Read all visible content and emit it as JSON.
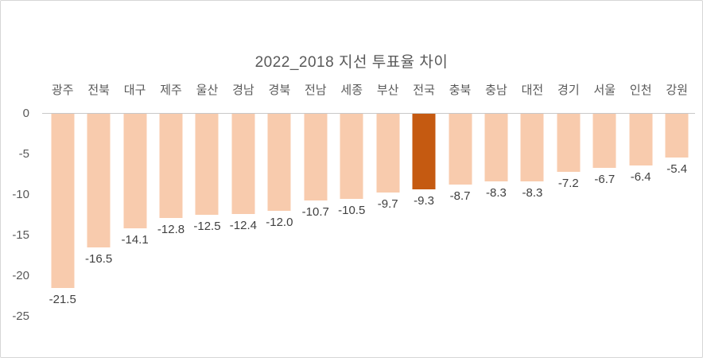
{
  "chart_data": {
    "type": "bar",
    "title": "2022_2018 지선 투표율 차이",
    "categories": [
      "광주",
      "전북",
      "대구",
      "제주",
      "울산",
      "경남",
      "경북",
      "전남",
      "세종",
      "부산",
      "전국",
      "충북",
      "충남",
      "대전",
      "경기",
      "서울",
      "인천",
      "강원"
    ],
    "values": [
      -21.5,
      -16.5,
      -14.1,
      -12.8,
      -12.5,
      -12.4,
      -12.0,
      -10.7,
      -10.5,
      -9.7,
      -9.3,
      -8.7,
      -8.3,
      -8.3,
      -7.2,
      -6.7,
      -6.4,
      -5.4
    ],
    "value_labels": [
      "-21.5",
      "-16.5",
      "-14.1",
      "-12.8",
      "-12.5",
      "-12.4",
      "-12.0",
      "-10.7",
      "-10.5",
      "-9.7",
      "-9.3",
      "-8.7",
      "-8.3",
      "-8.3",
      "-7.2",
      "-6.7",
      "-6.4",
      "-5.4"
    ],
    "highlight_category": "전국",
    "highlight_index": 10,
    "y_ticks": [
      "0",
      "-5",
      "-10",
      "-15",
      "-20",
      "-25"
    ],
    "ylim": [
      -25,
      0
    ],
    "grid": "off",
    "legend": "none",
    "colors": {
      "bar": "#F8CBAD",
      "bar_highlight": "#C55A11",
      "axis_line": "#C8C8C8",
      "title_text": "#595959",
      "tick_text": "#595959",
      "value_text": "#404040",
      "frame_border": "#D6D6D6",
      "background": "#FFFFFF"
    }
  }
}
